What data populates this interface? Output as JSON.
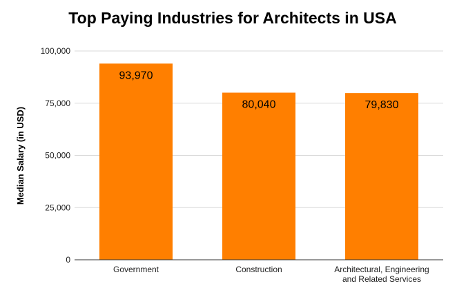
{
  "chart_data": {
    "type": "bar",
    "title": "Top Paying Industries for Architects in USA",
    "xlabel": "",
    "ylabel": "Median Salary (in USD)",
    "categories": [
      [
        "Government"
      ],
      [
        "Construction"
      ],
      [
        "Architectural, Engineering",
        "and Related Services"
      ]
    ],
    "values": [
      93970,
      80040,
      79830
    ],
    "value_labels": [
      "93,970",
      "80,040",
      "79,830"
    ],
    "ylim": [
      0,
      100000
    ],
    "yticks": [
      0,
      25000,
      50000,
      75000,
      100000
    ],
    "ytick_labels": [
      "0",
      "25,000",
      "50,000",
      "75,000",
      "100,000"
    ],
    "grid": true,
    "legend": "none",
    "bar_color": "#ff7f00"
  }
}
